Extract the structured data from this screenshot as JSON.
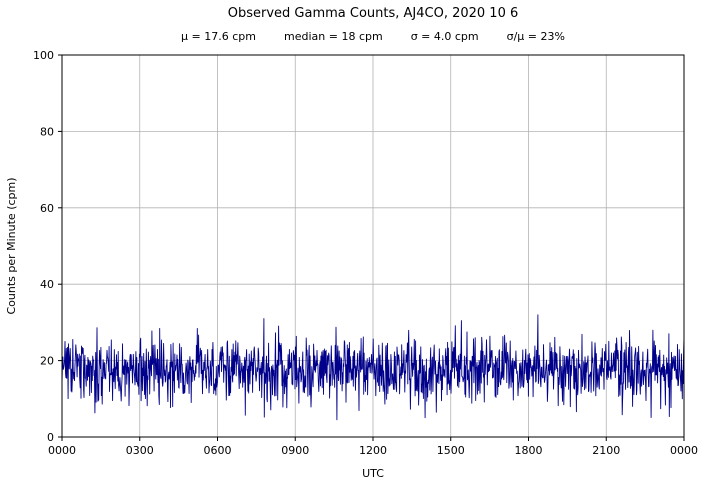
{
  "chart_data": {
    "type": "line",
    "title": "Observed Gamma Counts, AJ4CO, 2020 10 6",
    "stats": {
      "mu": "μ = 17.6 cpm",
      "median": "median = 18 cpm",
      "sigma": "σ = 4.0 cpm",
      "sigma_over_mu": "σ/μ = 23%"
    },
    "xlabel": "UTC",
    "ylabel": "Counts per Minute (cpm)",
    "ylim": [
      0,
      100
    ],
    "yticks": [
      0,
      20,
      40,
      60,
      80,
      100
    ],
    "xtick_labels": [
      "0000",
      "0300",
      "0600",
      "0900",
      "1200",
      "1500",
      "1800",
      "2100",
      "0000"
    ],
    "grid": true,
    "legend": "none",
    "line_color": "#00008B",
    "grid_color": "#b3b3b3",
    "series": [
      {
        "name": "Observed gamma counts",
        "summary": {
          "mean_cpm": 17.6,
          "median_cpm": 18,
          "sigma_cpm": 4.0,
          "sigma_over_mean_pct": 23,
          "n_minutes": 1440,
          "approx_min_cpm": 5,
          "approx_max_cpm": 32
        },
        "generator": {
          "distribution": "normal",
          "mean": 17.6,
          "sd": 4.0,
          "n": 1440,
          "seed": 20201006,
          "clamp_min": 4.5,
          "clamp_max": 31,
          "spikes": [
            {
              "frac": 0.765,
              "value": 32
            },
            {
              "frac": 0.325,
              "value": 5.2
            },
            {
              "frac": 0.602,
              "value": 6.5
            }
          ]
        }
      }
    ]
  }
}
